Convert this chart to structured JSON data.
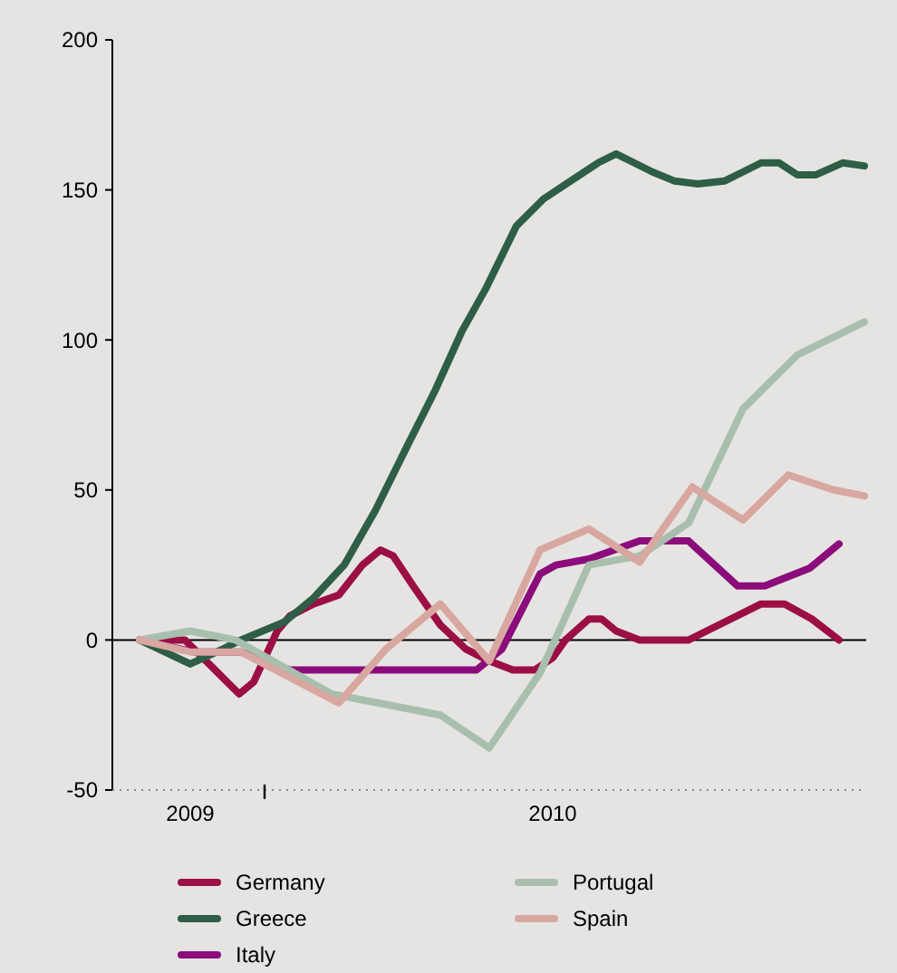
{
  "chart_data": {
    "type": "line",
    "xlim": [
      2008.785,
      2010.865
    ],
    "ylim": [
      -50,
      200
    ],
    "yticks": [
      -50,
      0,
      50,
      100,
      150,
      200
    ],
    "xticks": [
      2009,
      {
        "value": 2009.205,
        "label": null
      },
      2010
    ],
    "legend": "bottom",
    "ref_lines": [
      {
        "axis": "y",
        "value": 0,
        "color": "#000000"
      }
    ],
    "series": [
      {
        "name": "Germany",
        "color": "#9b0f45",
        "x": [
          2008.86,
          2008.985,
          2009.06,
          2009.135,
          2009.175,
          2009.24,
          2009.275,
          2009.34,
          2009.41,
          2009.475,
          2009.525,
          2009.56,
          2009.615,
          2009.69,
          2009.76,
          2009.825,
          2009.89,
          2009.95,
          2010,
          2010.035,
          2010.1,
          2010.135,
          2010.175,
          2010.24,
          2010.375,
          2010.575,
          2010.64,
          2010.715,
          2010.79
        ],
        "values": [
          0,
          0,
          -9,
          -18,
          -14,
          3,
          8,
          12,
          15,
          25,
          30,
          28,
          18,
          5,
          -3,
          -7,
          -10,
          -10,
          -6,
          0,
          7,
          7,
          3,
          0,
          0,
          12,
          12,
          7,
          0
        ]
      },
      {
        "name": "Greece",
        "color": "#2e5e45",
        "x": [
          2008.86,
          2009,
          2009.09,
          2009.14,
          2009.26,
          2009.34,
          2009.425,
          2009.51,
          2009.6,
          2009.675,
          2009.75,
          2009.815,
          2009.9,
          2009.975,
          2010.05,
          2010.125,
          2010.175,
          2010.225,
          2010.275,
          2010.335,
          2010.4,
          2010.475,
          2010.525,
          2010.575,
          2010.625,
          2010.675,
          2010.725,
          2010.8,
          2010.86
        ],
        "values": [
          0,
          -8,
          -3,
          0,
          6,
          14,
          25,
          43,
          65,
          83,
          103,
          117,
          138,
          147,
          153,
          159,
          162,
          159,
          156,
          153,
          152,
          153,
          156,
          159,
          159,
          155,
          155,
          159,
          158
        ]
      },
      {
        "name": "Italy",
        "color": "#8b0c7a",
        "x": [
          2008.86,
          2009.01,
          2009.14,
          2009.275,
          2009.79,
          2009.86,
          2009.965,
          2010.01,
          2010.1,
          2010.24,
          2010.375,
          2010.51,
          2010.585,
          2010.71,
          2010.79
        ],
        "values": [
          0,
          -4,
          -4,
          -10,
          -10,
          -3,
          22,
          25,
          27,
          33,
          33,
          18,
          18,
          24,
          32
        ]
      },
      {
        "name": "Portugal",
        "color": "#a8bfae",
        "x": [
          2008.86,
          2009,
          2009.125,
          2009.39,
          2009.69,
          2009.825,
          2009.965,
          2010.1,
          2010.24,
          2010.375,
          2010.525,
          2010.675,
          2010.86
        ],
        "values": [
          0,
          3,
          0,
          -18,
          -25,
          -36,
          -11,
          25,
          28,
          39,
          77,
          95,
          106
        ]
      },
      {
        "name": "Spain",
        "color": "#d8a7a0",
        "x": [
          2008.86,
          2009,
          2009.14,
          2009.41,
          2009.54,
          2009.69,
          2009.825,
          2009.965,
          2010.1,
          2010.24,
          2010.385,
          2010.525,
          2010.65,
          2010.775,
          2010.86
        ],
        "values": [
          0,
          -4,
          -4,
          -21,
          -3,
          12,
          -7,
          30,
          37,
          26,
          51,
          40,
          55,
          50,
          48
        ]
      }
    ]
  }
}
